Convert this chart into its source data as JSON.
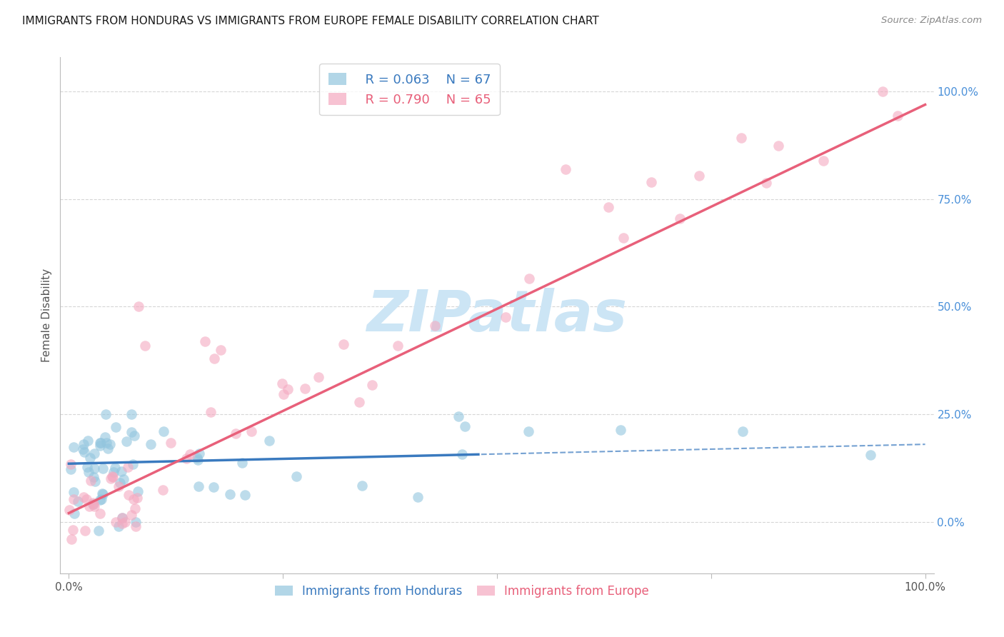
{
  "title": "IMMIGRANTS FROM HONDURAS VS IMMIGRANTS FROM EUROPE FEMALE DISABILITY CORRELATION CHART",
  "source": "Source: ZipAtlas.com",
  "ylabel": "Female Disability",
  "xlim": [
    0,
    1
  ],
  "ylim": [
    0,
    1
  ],
  "ytick_positions": [
    0,
    0.25,
    0.5,
    0.75,
    1.0
  ],
  "ytick_labels": [
    "0.0%",
    "25.0%",
    "50.0%",
    "75.0%",
    "100.0%"
  ],
  "grid_color": "#cccccc",
  "background_color": "#ffffff",
  "legend_blue_label": "Immigrants from Honduras",
  "legend_pink_label": "Immigrants from Europe",
  "legend_blue_R": "R = 0.063",
  "legend_blue_N": "N = 67",
  "legend_pink_R": "R = 0.790",
  "legend_pink_N": "N = 65",
  "blue_color": "#92c5de",
  "pink_color": "#f4a9c0",
  "blue_line_color": "#3a7abf",
  "pink_line_color": "#e8607a",
  "watermark": "ZIPatlas",
  "watermark_color": "#cce5f5"
}
